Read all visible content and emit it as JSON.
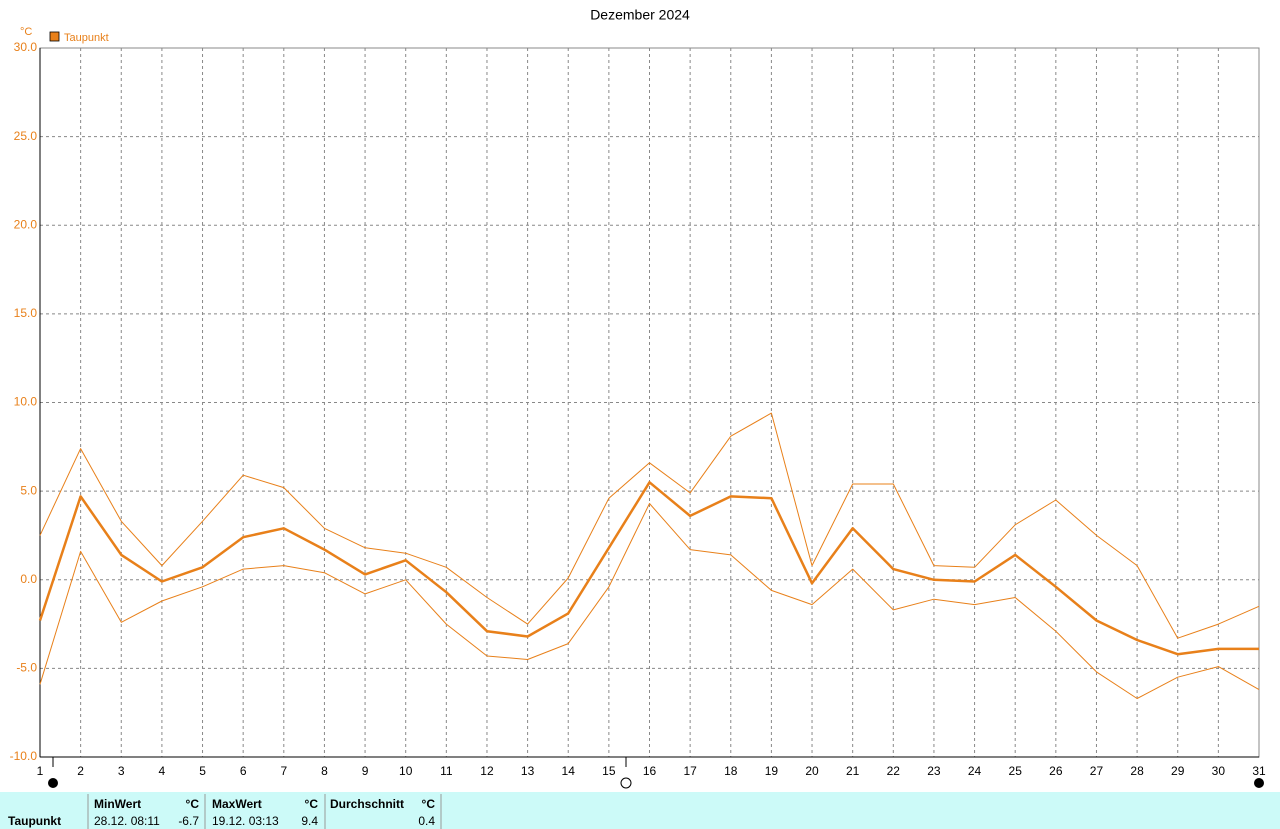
{
  "chart_data": {
    "type": "line",
    "title": "Dezember 2024",
    "y_label": "°C",
    "x": [
      1,
      2,
      3,
      4,
      5,
      6,
      7,
      8,
      9,
      10,
      11,
      12,
      13,
      14,
      15,
      16,
      17,
      18,
      19,
      20,
      21,
      22,
      23,
      24,
      25,
      26,
      27,
      28,
      29,
      30,
      31
    ],
    "xlim": [
      1,
      31
    ],
    "ylim": [
      -10,
      30
    ],
    "yticks": [
      {
        "value": -10,
        "label": "-10.0"
      },
      {
        "value": -5,
        "label": "-5.0"
      },
      {
        "value": 0,
        "label": "0.0"
      },
      {
        "value": 5,
        "label": "5.0"
      },
      {
        "value": 10,
        "label": "10.0"
      },
      {
        "value": 15,
        "label": "15.0"
      },
      {
        "value": 20,
        "label": "20.0"
      },
      {
        "value": 25,
        "label": "25.0"
      },
      {
        "value": 30,
        "label": "30.0"
      }
    ],
    "grid": true,
    "legend": "top-left",
    "series": [
      {
        "name": "Taupunkt",
        "color": "#e8801a",
        "values": [
          -2.3,
          4.7,
          1.4,
          -0.1,
          0.7,
          2.4,
          2.9,
          1.7,
          0.3,
          1.1,
          -0.7,
          -2.9,
          -3.2,
          -1.9,
          1.8,
          5.5,
          3.6,
          4.7,
          4.6,
          -0.2,
          2.9,
          0.6,
          0.0,
          -0.1,
          1.4,
          -0.4,
          -2.3,
          -3.4,
          -4.2,
          -3.9,
          -3.9
        ]
      },
      {
        "color": "#e8801a",
        "values": [
          2.5,
          7.4,
          3.3,
          0.8,
          3.3,
          5.9,
          5.2,
          2.9,
          1.8,
          1.5,
          0.7,
          -1.0,
          -2.5,
          0.1,
          4.6,
          6.6,
          4.9,
          8.1,
          9.4,
          0.8,
          5.4,
          5.4,
          0.8,
          0.7,
          3.1,
          4.5,
          2.5,
          0.8,
          -3.3,
          -2.5,
          -1.5
        ]
      },
      {
        "color": "#e8801a",
        "values": [
          -5.9,
          1.6,
          -2.4,
          -1.2,
          -0.4,
          0.6,
          0.8,
          0.4,
          -0.8,
          0.0,
          -2.5,
          -4.3,
          -4.5,
          -3.6,
          -0.4,
          4.3,
          1.7,
          1.4,
          -0.6,
          -1.4,
          0.6,
          -1.7,
          -1.1,
          -1.4,
          -1.0,
          -2.9,
          -5.2,
          -6.7,
          -5.5,
          -4.9,
          -6.2
        ]
      }
    ]
  },
  "table": {
    "row_label": "Taupunkt",
    "columns": [
      {
        "header": "MinWert",
        "unit": "°C",
        "time": "28.12.  08:11",
        "value": "-6.7"
      },
      {
        "header": "MaxWert",
        "unit": "°C",
        "time": "19.12.  03:13",
        "value": "9.4"
      },
      {
        "header": "Durchschnitt",
        "unit": "°C",
        "value": "0.4"
      }
    ]
  }
}
